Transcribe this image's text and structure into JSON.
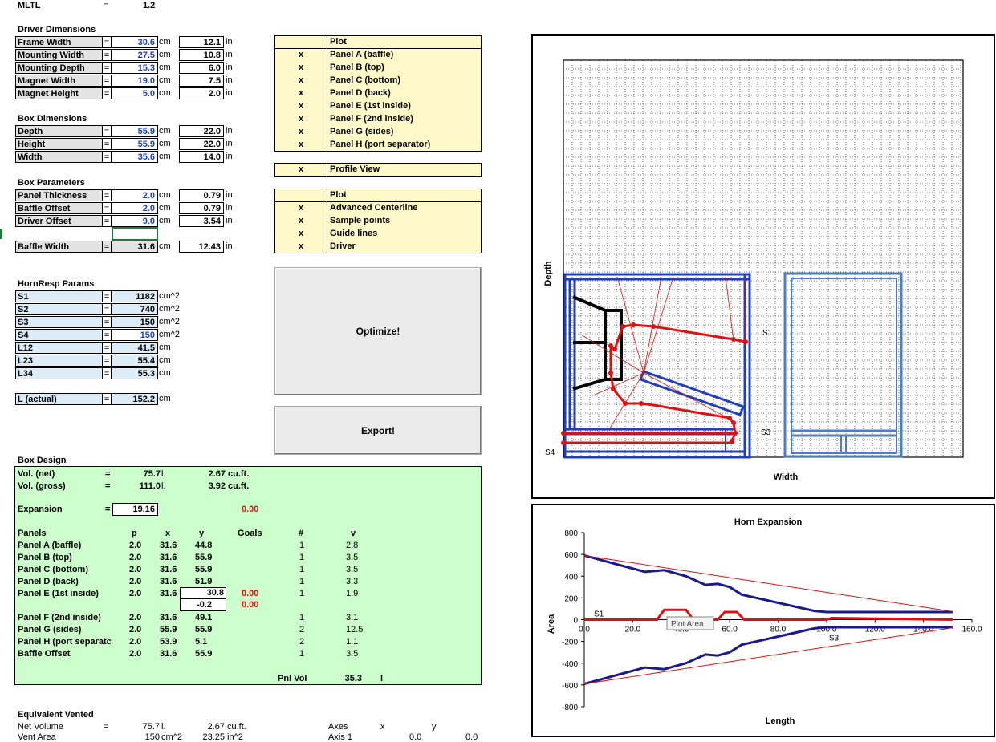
{
  "mltl": {
    "label": "MLTL",
    "eq": "=",
    "value": "1.2"
  },
  "driver": {
    "title": "Driver Dimensions",
    "rows": [
      {
        "label": "Frame Width",
        "value": "30.6",
        "unit": "cm",
        "inches": "12.1",
        "iunit": "in"
      },
      {
        "label": "Mounting Width",
        "value": "27.5",
        "unit": "cm",
        "inches": "10.8",
        "iunit": "in"
      },
      {
        "label": "Mounting Depth",
        "value": "15.3",
        "unit": "cm",
        "inches": "6.0",
        "iunit": "in"
      },
      {
        "label": "Magnet Width",
        "value": "19.0",
        "unit": "cm",
        "inches": "7.5",
        "iunit": "in"
      },
      {
        "label": "Magnet Height",
        "value": "5.0",
        "unit": "cm",
        "inches": "2.0",
        "iunit": "in"
      }
    ]
  },
  "box_dims": {
    "title": "Box Dimensions",
    "rows": [
      {
        "label": "Depth",
        "value": "55.9",
        "unit": "cm",
        "inches": "22.0",
        "iunit": "in"
      },
      {
        "label": "Height",
        "value": "55.9",
        "unit": "cm",
        "inches": "22.0",
        "iunit": "in"
      },
      {
        "label": "Width",
        "value": "35.6",
        "unit": "cm",
        "inches": "14.0",
        "iunit": "in"
      }
    ]
  },
  "box_params": {
    "title": "Box Parameters",
    "rows": [
      {
        "label": "Panel Thickness",
        "value": "2.0",
        "unit": "cm",
        "inches": "0.79",
        "iunit": "in"
      },
      {
        "label": "Baffle Offset",
        "value": "2.0",
        "unit": "cm",
        "inches": "0.79",
        "iunit": "in"
      },
      {
        "label": "Driver Offset",
        "value": "9.0",
        "unit": "cm",
        "inches": "3.54",
        "iunit": "in"
      }
    ],
    "baffle": {
      "label": "Baffle Width",
      "value": "31.6",
      "unit": "cm",
      "inches": "12.43",
      "iunit": "in"
    }
  },
  "eq": "=",
  "hornresp": {
    "title": "HornResp Params",
    "rows": [
      {
        "label": "S1",
        "value": "1182",
        "unit": "cm^2"
      },
      {
        "label": "S2",
        "value": "740",
        "unit": "cm^2"
      },
      {
        "label": "S3",
        "value": "150",
        "unit": "cm^2"
      },
      {
        "label": "S4",
        "value": "150",
        "unit": "cm^2"
      },
      {
        "label": "L12",
        "value": "41.5",
        "unit": "cm"
      },
      {
        "label": "L23",
        "value": "55.4",
        "unit": "cm"
      },
      {
        "label": "L34",
        "value": "55.3",
        "unit": "cm"
      }
    ],
    "actual": {
      "label": "L (actual)",
      "value": "152.2",
      "unit": "cm"
    }
  },
  "plot_panel": {
    "header": "Plot",
    "mark": "x",
    "items": [
      "Panel A (baffle)",
      "Panel B (top)",
      "Panel C (bottom)",
      "Panel D (back)",
      "Panel E (1st inside)",
      "Panel F (2nd inside)",
      "Panel G (sides)",
      "Panel H (port separator)"
    ]
  },
  "profile": {
    "mark": "x",
    "label": "Profile View"
  },
  "plot_opts": {
    "header": "Plot",
    "mark": "x",
    "items": [
      "Advanced Centerline",
      "Sample points",
      "Guide lines",
      "Driver"
    ]
  },
  "buttons": {
    "optimize": "Optimize!",
    "export": "Export!"
  },
  "box_design": {
    "title": "Box Design",
    "vol_net": {
      "label": "Vol. (net)",
      "eq": "=",
      "value": "75.7",
      "u1": "l.",
      "cuft": "2.67",
      "u2": "cu.ft."
    },
    "vol_gross": {
      "label": "Vol. (gross)",
      "eq": "=",
      "value": "111.0",
      "u1": "l.",
      "cuft": "3.92",
      "u2": "cu.ft."
    },
    "expansion": {
      "label": "Expansion",
      "eq": "=",
      "value": "19.16",
      "goal": "0.00"
    },
    "headers": {
      "panels": "Panels",
      "p": "p",
      "x": "x",
      "y": "y",
      "goals": "Goals",
      "n": "#",
      "v": "v"
    },
    "panels": [
      {
        "name": "Panel A (baffle)",
        "p": "2.0",
        "x": "31.6",
        "y": "44.8",
        "goal": "",
        "n": "1",
        "v": "2.8"
      },
      {
        "name": "Panel B (top)",
        "p": "2.0",
        "x": "31.6",
        "y": "55.9",
        "goal": "",
        "n": "1",
        "v": "3.5"
      },
      {
        "name": "Panel C (bottom)",
        "p": "2.0",
        "x": "31.6",
        "y": "55.9",
        "goal": "",
        "n": "1",
        "v": "3.5"
      },
      {
        "name": "Panel D (back)",
        "p": "2.0",
        "x": "31.6",
        "y": "51.9",
        "goal": "",
        "n": "1",
        "v": "3.3"
      },
      {
        "name": "Panel E (1st inside)",
        "p": "2.0",
        "x": "31.6",
        "y": "30.8",
        "goal": "0.00",
        "n": "1",
        "v": "1.9"
      }
    ],
    "panel_e_extra": {
      "y": "-0.2",
      "goal": "0.00"
    },
    "panels2": [
      {
        "name": "Panel F (2nd inside)",
        "p": "2.0",
        "x": "31.6",
        "y": "49.1",
        "n": "1",
        "v": "3.1"
      },
      {
        "name": "Panel G (sides)",
        "p": "2.0",
        "x": "55.9",
        "y": "55.9",
        "n": "2",
        "v": "12.5"
      },
      {
        "name": "Panel H (port separatc",
        "p": "2.0",
        "x": "53.9",
        "y": "5.1",
        "n": "2",
        "v": "1.1"
      },
      {
        "name": "Baffle Offset",
        "p": "2.0",
        "x": "31.6",
        "y": "55.9",
        "n": "1",
        "v": "3.5"
      }
    ],
    "pnl_vol": {
      "label": "Pnl Vol",
      "value": "35.3",
      "unit": "l"
    }
  },
  "equiv": {
    "title": "Equivalent Vented",
    "net": {
      "label": "Net Volume",
      "eq": "=",
      "value": "75.7",
      "u1": "l.",
      "cuft": "2.67",
      "u2": "cu.ft."
    },
    "vent": {
      "label": "Vent Area",
      "value": "150",
      "u1": "cm^2",
      "in": "23.25",
      "u2": "in^2"
    },
    "axes": {
      "label": "Axes",
      "x": "x",
      "y": "y",
      "axis1": "Axis 1",
      "v1": "0.0",
      "v2": "0.0"
    }
  },
  "profile_chart": {
    "ylabel": "Depth",
    "xlabel": "Width",
    "s1": "S1",
    "s3": "S3",
    "s4": "S4"
  },
  "chart_data": {
    "type": "line",
    "title": "Horn Expansion",
    "xlabel": "Length",
    "ylabel": "Area",
    "xlim": [
      0,
      160
    ],
    "ylim": [
      -800,
      800
    ],
    "xticks": [
      "0.0",
      "20.0",
      "40.0",
      "60.0",
      "80.0",
      "100.0",
      "120.0",
      "140.0",
      "160.0"
    ],
    "yticks": [
      "800",
      "600",
      "400",
      "200",
      "0",
      "-200",
      "-400",
      "-600",
      "-800"
    ],
    "annotations": {
      "s1": "S1",
      "s3": "S3",
      "tooltip": "Plot Area"
    },
    "series": [
      {
        "color": "#1a1a8c",
        "x": [
          0,
          25,
          33,
          42,
          50,
          55,
          60,
          65,
          75,
          85,
          95,
          100,
          105,
          152
        ],
        "y": [
          590,
          440,
          455,
          400,
          320,
          330,
          300,
          230,
          180,
          130,
          80,
          70,
          70,
          70
        ]
      },
      {
        "color": "#1a1a8c",
        "x": [
          0,
          25,
          33,
          42,
          50,
          55,
          60,
          65,
          75,
          85,
          95,
          100,
          105,
          152
        ],
        "y": [
          -590,
          -440,
          -455,
          -400,
          -320,
          -330,
          -300,
          -230,
          -180,
          -130,
          -80,
          -70,
          -70,
          -70
        ]
      },
      {
        "color": "#e01010",
        "x": [
          0,
          152
        ],
        "y": [
          590,
          75
        ]
      },
      {
        "color": "#e01010",
        "x": [
          0,
          152
        ],
        "y": [
          -590,
          -75
        ]
      },
      {
        "color": "#e01010",
        "x": [
          0,
          30,
          33,
          42,
          45,
          55,
          58,
          63,
          66,
          100,
          102,
          152
        ],
        "y": [
          0,
          0,
          90,
          90,
          0,
          0,
          70,
          70,
          0,
          0,
          15,
          0
        ]
      }
    ]
  }
}
